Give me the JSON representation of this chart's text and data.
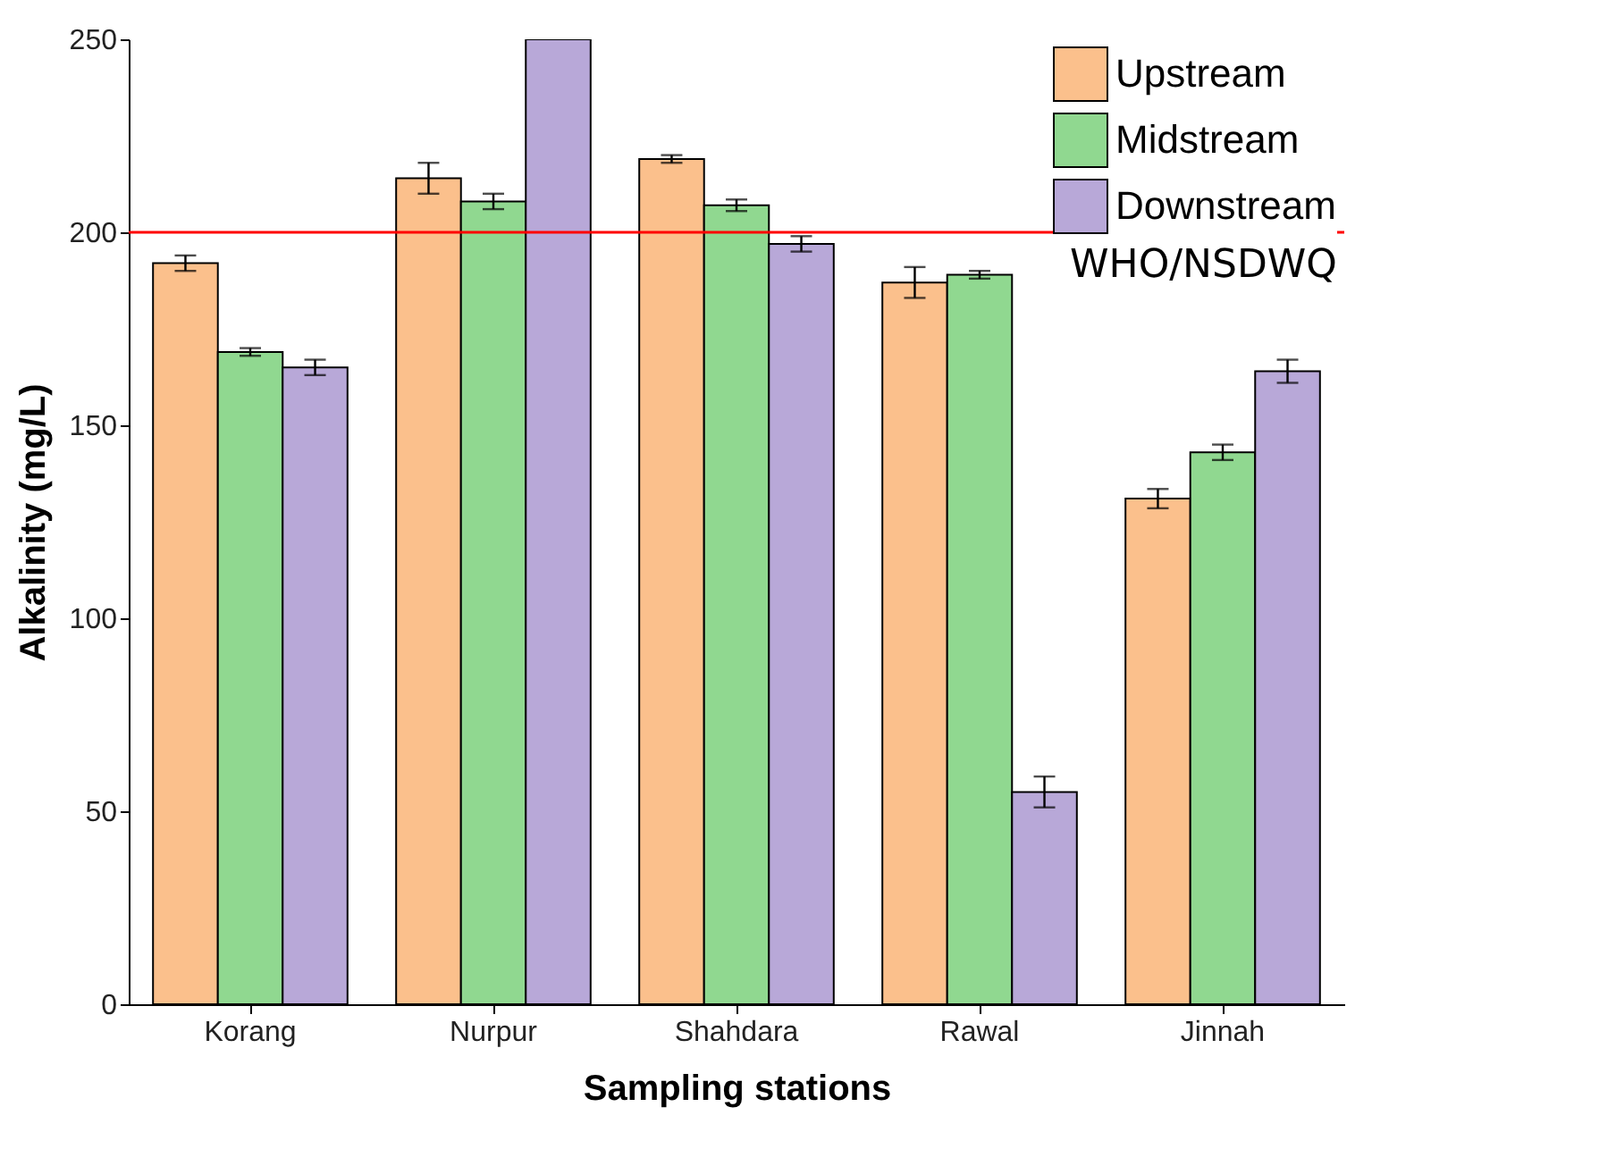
{
  "chart_data": {
    "type": "bar",
    "xlabel": "Sampling stations",
    "ylabel": "Alkalinity (mg/L)",
    "categories": [
      "Korang",
      "Nurpur",
      "Shahdara",
      "Rawal",
      "Jinnah"
    ],
    "series": [
      {
        "name": "Upstream",
        "color": "#fbc08c",
        "values": [
          192,
          214,
          219,
          187,
          131
        ],
        "errors": [
          2,
          4,
          1,
          4,
          2.5
        ]
      },
      {
        "name": "Midstream",
        "color": "#90d890",
        "values": [
          169,
          208,
          207,
          189,
          143
        ],
        "errors": [
          1,
          2,
          1.5,
          1,
          2
        ]
      },
      {
        "name": "Downstream",
        "color": "#b8a8d8",
        "values": [
          165,
          250,
          197,
          55,
          164
        ],
        "errors": [
          2,
          null,
          2,
          4,
          3
        ]
      }
    ],
    "ylim": [
      0,
      250
    ],
    "yticks": [
      0,
      50,
      100,
      150,
      200,
      250
    ],
    "ref_lines": [
      {
        "axis": "y",
        "value": 200,
        "label": "WHO/NSDWQ",
        "color": "#ff0000"
      }
    ],
    "legend": "top right",
    "grid": false
  }
}
